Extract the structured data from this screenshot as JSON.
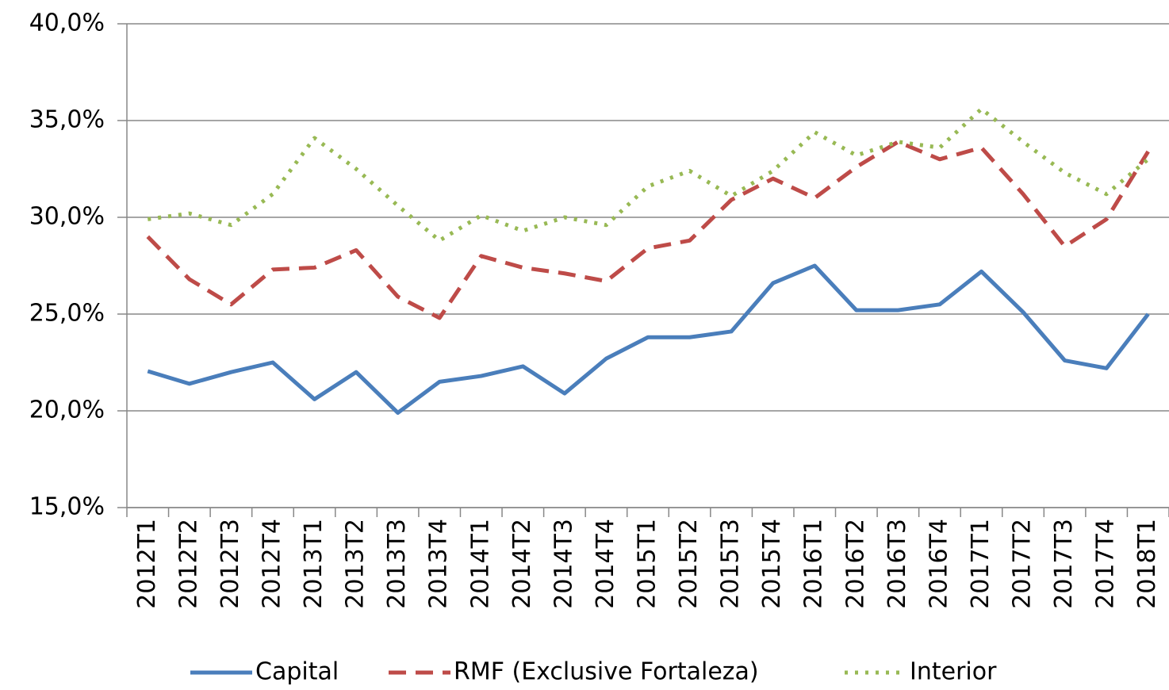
{
  "chart_data": {
    "type": "line",
    "categories": [
      "2012T1",
      "2012T2",
      "2012T3",
      "2012T4",
      "2013T1",
      "2013T2",
      "2013T3",
      "2013T4",
      "2014T1",
      "2014T2",
      "2014T3",
      "2014T4",
      "2015T1",
      "2015T2",
      "2015T3",
      "2015T4",
      "2016T1",
      "2016T2",
      "2016T3",
      "2016T4",
      "2017T1",
      "2017T2",
      "2017T3",
      "2017T4",
      "2018T1"
    ],
    "series": [
      {
        "name": "Capital",
        "color": "#4a7ebb",
        "style": "solid",
        "values": [
          22.05,
          21.4,
          22.0,
          22.5,
          20.6,
          22.0,
          19.9,
          21.5,
          21.8,
          22.3,
          20.9,
          22.7,
          23.8,
          23.8,
          24.1,
          26.6,
          27.5,
          25.2,
          25.2,
          25.5,
          27.2,
          25.1,
          22.6,
          22.2,
          25.0
        ]
      },
      {
        "name": "RMF (Exclusive Fortaleza)",
        "color": "#be4b48",
        "style": "dashed",
        "values": [
          29.0,
          26.8,
          25.5,
          27.3,
          27.4,
          28.3,
          25.9,
          24.8,
          28.0,
          27.4,
          27.1,
          26.7,
          28.4,
          28.8,
          30.9,
          32.0,
          31.0,
          32.6,
          33.9,
          33.0,
          33.6,
          31.2,
          28.5,
          29.9,
          33.4
        ]
      },
      {
        "name": "Interior",
        "color": "#98b954",
        "style": "dotted",
        "values": [
          29.9,
          30.2,
          29.6,
          31.2,
          34.1,
          32.5,
          30.6,
          28.8,
          30.1,
          29.3,
          30.0,
          29.6,
          31.6,
          32.4,
          31.1,
          32.4,
          34.4,
          33.2,
          33.9,
          33.6,
          35.6,
          33.9,
          32.3,
          31.2,
          33.0
        ]
      }
    ],
    "ylim": [
      15,
      40
    ],
    "yticks": [
      {
        "value": 15,
        "label": "15,0%"
      },
      {
        "value": 20,
        "label": "20,0%"
      },
      {
        "value": 25,
        "label": "25,0%"
      },
      {
        "value": 30,
        "label": "30,0%"
      },
      {
        "value": 35,
        "label": "35,0%"
      },
      {
        "value": 40,
        "label": "40,0%"
      }
    ],
    "grid": true,
    "legend": "bottom"
  }
}
